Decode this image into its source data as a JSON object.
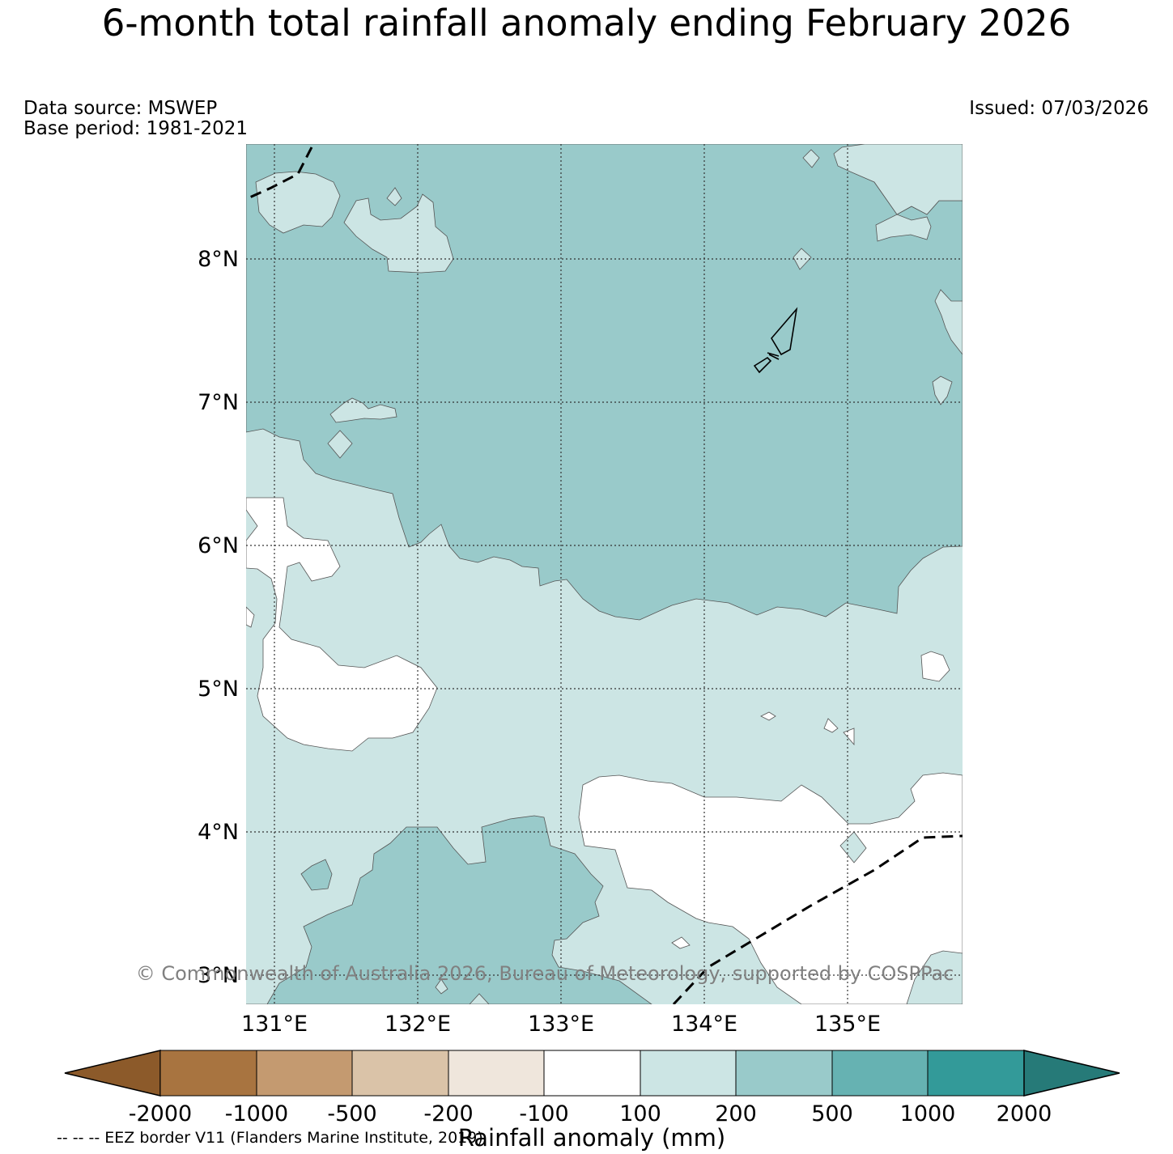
{
  "title": "6-month total rainfall anomaly ending February 2026",
  "data_source": "Data source: MSWEP",
  "base_period": "Base period: 1981-2021",
  "issued": "Issued: 07/03/2026",
  "copyright": "© Commonwealth of Australia 2026, Bureau of Meteorology, supported by COSPPac",
  "eez_note": "-- -- -- EEZ border V11 (Flanders Marine Institute, 2019)",
  "colorbar": {
    "title": "Rainfall anomaly (mm)",
    "tick_labels": [
      "-2000",
      "-1000",
      "-500",
      "-200",
      "-100",
      "100",
      "200",
      "500",
      "1000",
      "2000"
    ],
    "colors": [
      "#8c5a2a",
      "#a87440",
      "#c49a70",
      "#dac3a8",
      "#efe6dc",
      "#ffffff",
      "#cce5e4",
      "#99caca",
      "#66b2b2",
      "#339a99",
      "#267a78"
    ]
  },
  "map": {
    "lat_labels": [
      "8°N",
      "7°N",
      "6°N",
      "5°N",
      "4°N",
      "3°N"
    ],
    "lon_labels": [
      "131°E",
      "132°E",
      "133°E",
      "134°E",
      "135°E"
    ],
    "fill_colors": {
      "light": "#cce5e4",
      "mid": "#99caca",
      "white": "#ffffff"
    }
  }
}
